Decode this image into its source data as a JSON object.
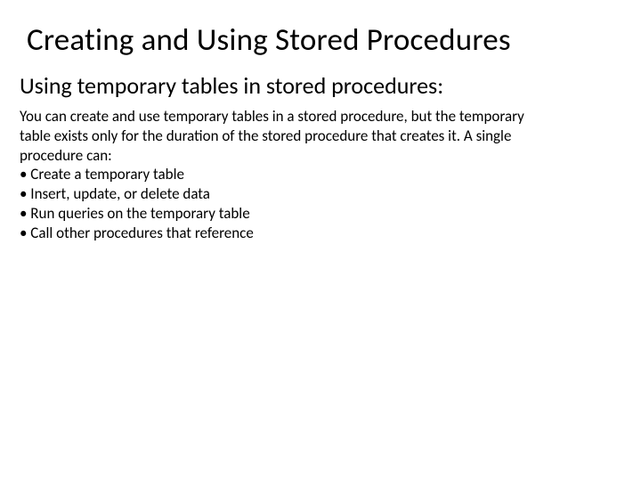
{
  "title": "Creating and Using Stored Procedures",
  "subtitle": "Using temporary tables in stored procedures:",
  "body": {
    "intro1": "You can create and use temporary tables in a stored procedure, but the temporary",
    "intro2": "table exists only for the duration of the stored procedure that creates it. A single",
    "intro3": "procedure can:",
    "b1": "• Create a temporary table",
    "b2": "• Insert, update, or delete data",
    "b3": "• Run queries on the temporary table",
    "b4": "• Call other procedures that reference"
  },
  "colors": {
    "background": "#ffffff",
    "text": "#000000"
  },
  "typography": {
    "title_fontsize": 35,
    "subtitle_fontsize": 26,
    "body_fontsize": 17,
    "font_family": "Calibri"
  }
}
